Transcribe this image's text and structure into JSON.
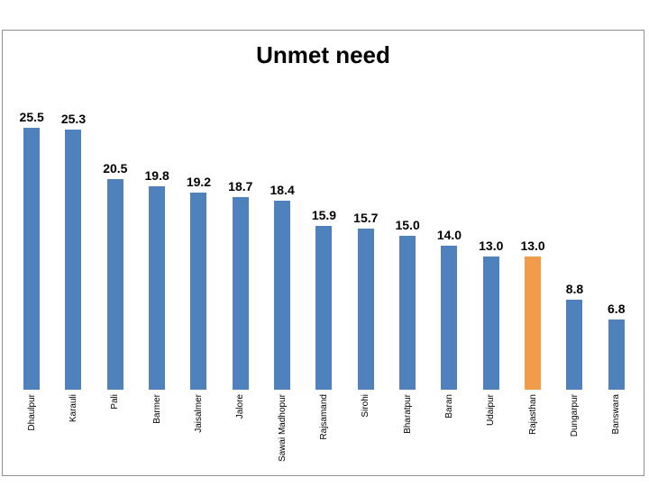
{
  "slide": {
    "background": "#ffffff",
    "chart_border_color": "#919191"
  },
  "chart_data": {
    "type": "bar",
    "title": "Unmet need",
    "categories": [
      "Dhaulpur",
      "Karauli",
      "Pali",
      "Barmer",
      "Jaisalmer",
      "Jalore",
      "Sawai Madhopur",
      "Rajsamand",
      "Sirohi",
      "Bharatpur",
      "Baran",
      "Udaipur",
      "Rajasthan",
      "Dungarpur",
      "Banswara"
    ],
    "values": [
      25.5,
      25.3,
      20.5,
      19.8,
      19.2,
      18.7,
      18.4,
      15.9,
      15.7,
      15.0,
      14.0,
      13.0,
      13.0,
      8.8,
      6.8
    ],
    "value_labels": [
      "25.5",
      "25.3",
      "20.5",
      "19.8",
      "19.2",
      "18.7",
      "18.4",
      "15.9",
      "15.7",
      "15.0",
      "14.0",
      "13.0",
      "13.0",
      "8.8",
      "6.8"
    ],
    "highlight_category": "Rajasthan",
    "highlight_index": 12,
    "bar_color": "#4F81BD",
    "highlight_color": "#F19C4A",
    "value_label_color": "#000000",
    "category_label_color": "#000000",
    "xlabel": "",
    "ylabel": "",
    "ylim": [
      0,
      26.3
    ],
    "grid": false,
    "legend": false,
    "value_axis_visible": false
  }
}
